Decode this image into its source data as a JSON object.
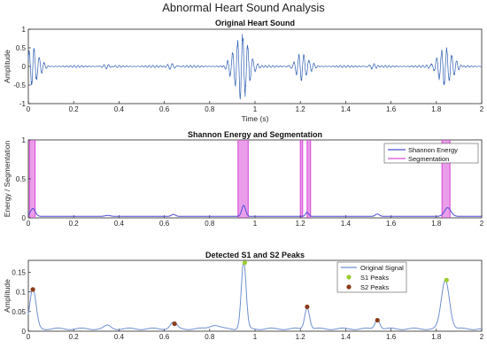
{
  "figure": {
    "title": "Abnormal Heart Sound Analysis"
  },
  "chart_data": [
    {
      "type": "line",
      "title": "Original Heart Sound",
      "xlabel": "Time (s)",
      "ylabel": "Amplitude",
      "xlim": [
        0,
        2
      ],
      "ylim": [
        -1,
        1
      ],
      "xticks": [
        0,
        0.2,
        0.4,
        0.6,
        0.8,
        1,
        1.2,
        1.4,
        1.6,
        1.8,
        2
      ],
      "yticks": [
        -1,
        -0.5,
        0,
        0.5,
        1
      ],
      "grid": false,
      "colors": {
        "signal": "#2f5fb3"
      },
      "series": [
        {
          "bursts": [
            {
              "t": 0.02,
              "amp": 0.55,
              "dur": 0.06
            },
            {
              "t": 0.35,
              "amp": 0.05,
              "dur": 0.05
            },
            {
              "t": 0.63,
              "amp": 0.08,
              "dur": 0.04
            },
            {
              "t": 0.94,
              "amp": 0.95,
              "dur": 0.07
            },
            {
              "t": 1.21,
              "amp": 0.4,
              "dur": 0.06
            },
            {
              "t": 1.52,
              "amp": 0.06,
              "dur": 0.04
            },
            {
              "t": 1.84,
              "amp": 0.55,
              "dur": 0.07
            }
          ],
          "baseline_noise": 0.03
        }
      ]
    },
    {
      "type": "line",
      "title": "Shannon Energy and Segmentation",
      "xlabel": "",
      "ylabel": "Energy / Segmentation",
      "xlim": [
        0,
        2
      ],
      "ylim": [
        0,
        1
      ],
      "xticks": [
        0,
        0.2,
        0.4,
        0.6,
        0.8,
        1,
        1.2,
        1.4,
        1.6,
        1.8,
        2
      ],
      "yticks": [
        0,
        0.5,
        1
      ],
      "grid": false,
      "legend": "top-right",
      "colors": {
        "energy": "#4d4dd6",
        "segmentation": "#d94fd9"
      },
      "series": [
        {
          "name": "Shannon Energy",
          "peaks": [
            {
              "t": 0.02,
              "h": 0.1,
              "w": 0.015
            },
            {
              "t": 0.35,
              "h": 0.012,
              "w": 0.015
            },
            {
              "t": 0.64,
              "h": 0.025,
              "w": 0.012
            },
            {
              "t": 0.95,
              "h": 0.14,
              "w": 0.012
            },
            {
              "t": 1.23,
              "h": 0.05,
              "w": 0.01
            },
            {
              "t": 1.54,
              "h": 0.03,
              "w": 0.012
            },
            {
              "t": 1.85,
              "h": 0.11,
              "w": 0.02
            }
          ],
          "baseline": 0.02
        },
        {
          "name": "Segmentation",
          "segments": [
            {
              "from": 0.005,
              "to": 0.03
            },
            {
              "from": 0.925,
              "to": 0.97
            },
            {
              "from": 1.2,
              "to": 1.21
            },
            {
              "from": 1.23,
              "to": 1.245
            },
            {
              "from": 1.825,
              "to": 1.86
            }
          ]
        }
      ]
    },
    {
      "type": "line",
      "title": "Detected S1 and S2 Peaks",
      "xlabel": "",
      "ylabel": "Amplitude",
      "xlim": [
        0,
        2
      ],
      "ylim": [
        0,
        0.18
      ],
      "xticks": [
        0,
        0.2,
        0.4,
        0.6,
        0.8,
        1,
        1.2,
        1.4,
        1.6,
        1.8,
        2
      ],
      "yticks": [
        0,
        0.05,
        0.1,
        0.15
      ],
      "highlighted_tick": 0.4,
      "grid": false,
      "legend": "top-center",
      "colors": {
        "signal": "#6f8fd0",
        "s1": "#9acd32",
        "s2": "#8b3a1a",
        "tick_highlight": "#c0307a"
      },
      "series": [
        {
          "name": "Original Signal",
          "peaks": [
            {
              "t": 0.02,
              "h": 0.1,
              "w": 0.02
            },
            {
              "t": 0.35,
              "h": 0.008,
              "w": 0.02
            },
            {
              "t": 0.64,
              "h": 0.016,
              "w": 0.02
            },
            {
              "t": 0.82,
              "h": 0.01,
              "w": 0.03
            },
            {
              "t": 0.95,
              "h": 0.17,
              "w": 0.015
            },
            {
              "t": 1.23,
              "h": 0.055,
              "w": 0.015
            },
            {
              "t": 1.54,
              "h": 0.025,
              "w": 0.015
            },
            {
              "t": 1.84,
              "h": 0.125,
              "w": 0.025
            }
          ],
          "baseline": 0.006
        },
        {
          "name": "S1 Peaks",
          "points": [
            {
              "x": 0.955,
              "y": 0.174
            },
            {
              "x": 1.845,
              "y": 0.13
            }
          ]
        },
        {
          "name": "S2 Peaks",
          "points": [
            {
              "x": 0.02,
              "y": 0.106
            },
            {
              "x": 0.645,
              "y": 0.019
            },
            {
              "x": 1.23,
              "y": 0.062
            },
            {
              "x": 1.54,
              "y": 0.028
            }
          ]
        }
      ]
    }
  ]
}
